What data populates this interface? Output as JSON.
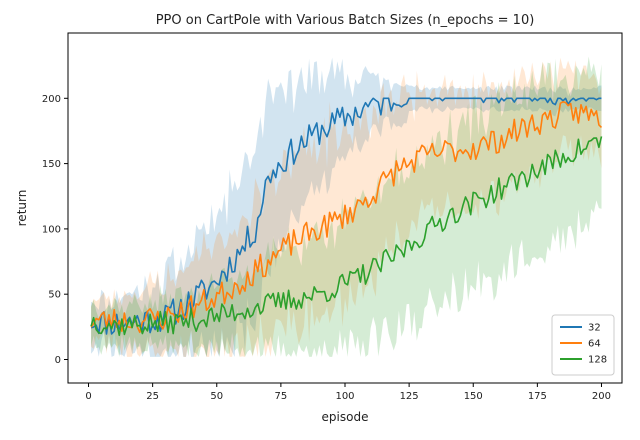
{
  "chart_data": {
    "type": "line",
    "title": "PPO on CartPole with Various Batch Sizes (n_epochs = 10)",
    "xlabel": "episode",
    "ylabel": "return",
    "xlim": [
      -8,
      208
    ],
    "ylim": [
      -18,
      250
    ],
    "xticks": [
      0,
      25,
      50,
      75,
      100,
      125,
      150,
      175,
      200
    ],
    "yticks": [
      0,
      50,
      100,
      150,
      200
    ],
    "legend_position": "lower-right",
    "shaded_band": "variability around each mean line",
    "series": [
      {
        "name": "32",
        "color": "#1f77b4",
        "band_opacity": 0.2,
        "knots": [
          [
            1,
            30
          ],
          [
            10,
            28
          ],
          [
            20,
            30
          ],
          [
            30,
            32
          ],
          [
            40,
            45
          ],
          [
            50,
            60
          ],
          [
            60,
            85
          ],
          [
            65,
            100
          ],
          [
            70,
            140
          ],
          [
            80,
            160
          ],
          [
            90,
            175
          ],
          [
            100,
            185
          ],
          [
            110,
            195
          ],
          [
            120,
            198
          ],
          [
            130,
            200
          ],
          [
            200,
            200
          ]
        ],
        "band_knots": [
          [
            1,
            16
          ],
          [
            10,
            18
          ],
          [
            20,
            22
          ],
          [
            30,
            30
          ],
          [
            40,
            40
          ],
          [
            50,
            50
          ],
          [
            60,
            60
          ],
          [
            65,
            65
          ],
          [
            70,
            60
          ],
          [
            80,
            50
          ],
          [
            90,
            40
          ],
          [
            100,
            30
          ],
          [
            110,
            22
          ],
          [
            120,
            15
          ],
          [
            130,
            8
          ],
          [
            200,
            8
          ]
        ],
        "noise": 11,
        "seed": 11
      },
      {
        "name": "64",
        "color": "#ff7f0e",
        "band_opacity": 0.18,
        "knots": [
          [
            1,
            30
          ],
          [
            10,
            30
          ],
          [
            20,
            30
          ],
          [
            30,
            32
          ],
          [
            40,
            40
          ],
          [
            50,
            48
          ],
          [
            60,
            60
          ],
          [
            70,
            75
          ],
          [
            80,
            90
          ],
          [
            90,
            100
          ],
          [
            100,
            110
          ],
          [
            110,
            125
          ],
          [
            120,
            145
          ],
          [
            130,
            155
          ],
          [
            140,
            160
          ],
          [
            150,
            162
          ],
          [
            160,
            168
          ],
          [
            170,
            178
          ],
          [
            180,
            185
          ],
          [
            190,
            190
          ],
          [
            200,
            185
          ]
        ],
        "band_knots": [
          [
            1,
            16
          ],
          [
            10,
            20
          ],
          [
            20,
            25
          ],
          [
            30,
            28
          ],
          [
            40,
            35
          ],
          [
            50,
            40
          ],
          [
            60,
            50
          ],
          [
            70,
            60
          ],
          [
            80,
            65
          ],
          [
            90,
            70
          ],
          [
            100,
            65
          ],
          [
            110,
            60
          ],
          [
            120,
            55
          ],
          [
            130,
            50
          ],
          [
            140,
            48
          ],
          [
            150,
            45
          ],
          [
            160,
            40
          ],
          [
            170,
            38
          ],
          [
            180,
            35
          ],
          [
            190,
            30
          ],
          [
            200,
            30
          ]
        ],
        "noise": 10,
        "seed": 23
      },
      {
        "name": "128",
        "color": "#2ca02c",
        "band_opacity": 0.2,
        "knots": [
          [
            1,
            30
          ],
          [
            10,
            26
          ],
          [
            20,
            27
          ],
          [
            30,
            28
          ],
          [
            40,
            30
          ],
          [
            50,
            33
          ],
          [
            60,
            38
          ],
          [
            70,
            42
          ],
          [
            80,
            46
          ],
          [
            90,
            50
          ],
          [
            100,
            58
          ],
          [
            110,
            68
          ],
          [
            120,
            80
          ],
          [
            130,
            95
          ],
          [
            140,
            110
          ],
          [
            150,
            120
          ],
          [
            160,
            130
          ],
          [
            170,
            140
          ],
          [
            180,
            150
          ],
          [
            190,
            160
          ],
          [
            200,
            168
          ]
        ],
        "band_knots": [
          [
            1,
            14
          ],
          [
            10,
            14
          ],
          [
            20,
            15
          ],
          [
            30,
            18
          ],
          [
            40,
            20
          ],
          [
            50,
            25
          ],
          [
            60,
            30
          ],
          [
            70,
            35
          ],
          [
            80,
            40
          ],
          [
            90,
            45
          ],
          [
            100,
            50
          ],
          [
            110,
            55
          ],
          [
            120,
            60
          ],
          [
            130,
            60
          ],
          [
            140,
            62
          ],
          [
            150,
            64
          ],
          [
            160,
            64
          ],
          [
            170,
            62
          ],
          [
            180,
            60
          ],
          [
            190,
            58
          ],
          [
            200,
            55
          ]
        ],
        "noise": 9,
        "seed": 37
      }
    ]
  }
}
